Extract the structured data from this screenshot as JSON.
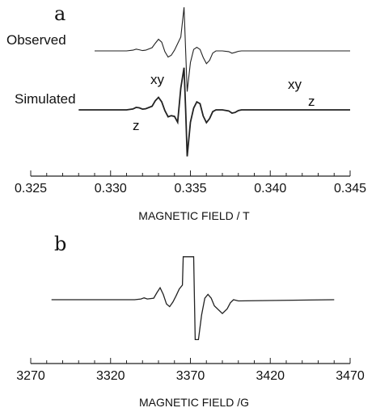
{
  "chart_data": [
    {
      "type": "line",
      "panel": "a",
      "xlabel": "MAGNETIC FIELD / T",
      "xlim": [
        0.325,
        0.345
      ],
      "xticks": [
        "0.325",
        "0.330",
        "0.335",
        "0.340",
        "0.345"
      ],
      "series": [
        {
          "name": "Observed",
          "x": [
            0.329,
            0.331,
            0.3314,
            0.3316,
            0.3318,
            0.332,
            0.3322,
            0.3326,
            0.3328,
            0.333,
            0.3332,
            0.3334,
            0.3336,
            0.3338,
            0.334,
            0.3342,
            0.3344,
            0.3346,
            0.3347,
            0.3348,
            0.335,
            0.3352,
            0.3354,
            0.3356,
            0.3358,
            0.336,
            0.3362,
            0.3364,
            0.3366,
            0.337,
            0.3374,
            0.3376,
            0.3378,
            0.338,
            0.3382,
            0.339,
            0.345
          ],
          "y": [
            0,
            0,
            0.05,
            0.12,
            0.08,
            0.02,
            0.05,
            0.22,
            0.52,
            0.8,
            0.6,
            -0.05,
            -0.42,
            -0.3,
            0.05,
            0.5,
            0.95,
            3.0,
            0,
            -2.8,
            -0.8,
            0.1,
            0.25,
            0.1,
            -0.45,
            -0.88,
            -0.65,
            -0.15,
            0,
            0,
            -0.05,
            -0.16,
            -0.1,
            -0.03,
            0,
            0,
            0
          ]
        },
        {
          "name": "Simulated",
          "x": [
            0.328,
            0.331,
            0.3314,
            0.3316,
            0.3318,
            0.332,
            0.3322,
            0.3326,
            0.3328,
            0.333,
            0.3332,
            0.3334,
            0.3336,
            0.3338,
            0.334,
            0.3342,
            0.3344,
            0.3346,
            0.3347,
            0.3348,
            0.335,
            0.3352,
            0.3354,
            0.3356,
            0.3358,
            0.336,
            0.3362,
            0.3364,
            0.3366,
            0.337,
            0.3374,
            0.3376,
            0.3378,
            0.338,
            0.3382,
            0.339,
            0.345
          ],
          "y": [
            0,
            0,
            0.06,
            0.17,
            0.14,
            0.05,
            0.08,
            0.25,
            0.62,
            0.86,
            0.55,
            -0.05,
            -0.48,
            -0.4,
            -0.45,
            -0.85,
            1.5,
            2.9,
            0,
            -3.2,
            -0.85,
            0.12,
            0.55,
            0.42,
            -0.42,
            -0.88,
            -0.6,
            -0.12,
            0,
            0,
            -0.07,
            -0.22,
            -0.18,
            -0.05,
            0,
            0,
            0
          ]
        }
      ],
      "annotations": [
        "z",
        "xy",
        "xy",
        "z"
      ]
    },
    {
      "type": "line",
      "panel": "b",
      "xlabel": "MAGNETIC FIELD /G",
      "xlim": [
        3270,
        3470
      ],
      "xticks": [
        "3270",
        "3320",
        "3370",
        "3420",
        "3470"
      ],
      "series": [
        {
          "name": "",
          "x": [
            3283,
            3335,
            3339,
            3341,
            3343,
            3347,
            3349,
            3351,
            3353,
            3355,
            3357,
            3359,
            3361,
            3363,
            3365,
            3365.5,
            3367,
            3372,
            3373,
            3375,
            3377,
            3379,
            3381,
            3383,
            3385,
            3390,
            3393,
            3395,
            3397,
            3400,
            3460
          ],
          "y": [
            0,
            0,
            0.05,
            0.12,
            0.05,
            0.1,
            0.45,
            0.78,
            0.35,
            -0.28,
            -0.45,
            -0.15,
            0.25,
            0.7,
            0.95,
            2.8,
            2.8,
            2.8,
            -2.6,
            -2.6,
            -1.0,
            0.1,
            0.35,
            0.1,
            -0.4,
            -0.9,
            -0.6,
            -0.2,
            0,
            -0.08,
            0
          ]
        }
      ]
    }
  ],
  "labels": {
    "panel_a": "a",
    "panel_b": "b",
    "observed": "Observed",
    "simulated": "Simulated",
    "ann_z_left": "z",
    "ann_xy_left": "xy",
    "ann_xy_right": "xy",
    "ann_z_right": "z"
  },
  "colors": {
    "trace": "#222222",
    "axis": "#222222"
  }
}
